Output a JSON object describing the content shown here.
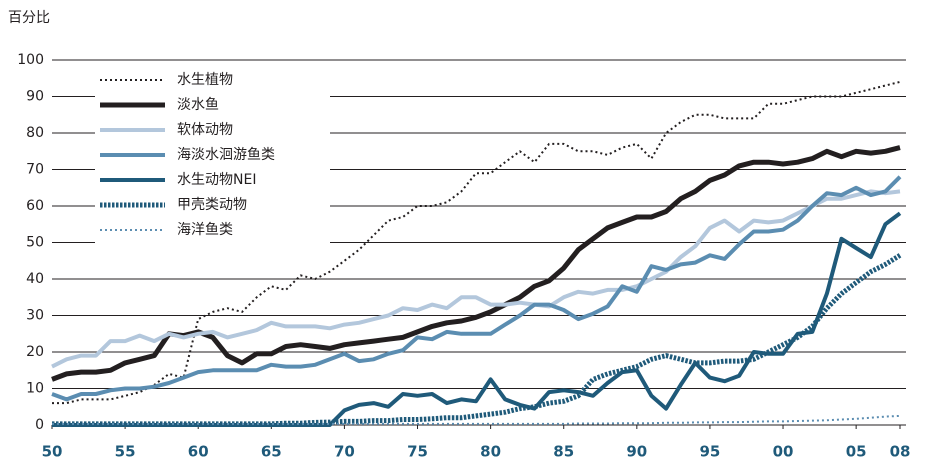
{
  "chart_data": {
    "type": "line",
    "ylabel": "百分比",
    "x": [
      1950,
      1951,
      1952,
      1953,
      1954,
      1955,
      1956,
      1957,
      1958,
      1959,
      1960,
      1961,
      1962,
      1963,
      1964,
      1965,
      1966,
      1967,
      1968,
      1969,
      1970,
      1971,
      1972,
      1973,
      1974,
      1975,
      1976,
      1977,
      1978,
      1979,
      1980,
      1981,
      1982,
      1983,
      1984,
      1985,
      1986,
      1987,
      1988,
      1989,
      1990,
      1991,
      1992,
      1993,
      1994,
      1995,
      1996,
      1997,
      1998,
      1999,
      2000,
      2001,
      2002,
      2003,
      2004,
      2005,
      2006,
      2007,
      2008
    ],
    "xlim": [
      1950,
      2008
    ],
    "xticks": [
      {
        "value": 1950,
        "label": "50"
      },
      {
        "value": 1955,
        "label": "55"
      },
      {
        "value": 1960,
        "label": "60"
      },
      {
        "value": 1965,
        "label": "65"
      },
      {
        "value": 1970,
        "label": "70"
      },
      {
        "value": 1975,
        "label": "75"
      },
      {
        "value": 1980,
        "label": "80"
      },
      {
        "value": 1985,
        "label": "85"
      },
      {
        "value": 1990,
        "label": "90"
      },
      {
        "value": 1995,
        "label": "95"
      },
      {
        "value": 2000,
        "label": "00"
      },
      {
        "value": 2005,
        "label": "05"
      },
      {
        "value": 2008,
        "label": "08"
      }
    ],
    "ylim": [
      0,
      100
    ],
    "yticks": [
      0,
      10,
      20,
      30,
      40,
      50,
      60,
      70,
      80,
      90,
      100
    ],
    "grid": true,
    "legend": "upper left",
    "series": [
      {
        "name": "水生植物",
        "color": "#231f20",
        "dash": "dotted",
        "width": 2,
        "values": [
          6,
          6,
          7,
          7,
          7,
          8,
          9,
          11,
          14,
          13,
          29,
          31,
          32,
          31,
          35,
          38,
          37,
          41,
          40,
          42,
          45,
          48,
          52,
          56,
          57,
          60,
          60,
          61,
          64,
          69,
          69,
          72,
          75,
          72,
          77,
          77,
          75,
          75,
          74,
          76,
          77,
          73,
          80,
          83,
          85,
          85,
          84,
          84,
          84,
          88,
          88,
          89,
          90,
          90,
          90,
          91,
          92,
          93,
          94
        ]
      },
      {
        "name": "淡水鱼",
        "color": "#231f20",
        "dash": "solid",
        "width": 5,
        "values": [
          12.5,
          14,
          14.5,
          14.5,
          15,
          17,
          18,
          19,
          25,
          24.5,
          25.5,
          24,
          19,
          17,
          19.5,
          19.5,
          21.5,
          22,
          21.5,
          21,
          22,
          22.5,
          23,
          23.5,
          24,
          25.5,
          27,
          28,
          28.5,
          29.5,
          31,
          33,
          35,
          38,
          39.5,
          43,
          48,
          51,
          54,
          55.5,
          57,
          57,
          58.5,
          62,
          64,
          67,
          68.5,
          71,
          72,
          72,
          71.5,
          72,
          73,
          75,
          73.5,
          75,
          74.5,
          75,
          76
        ]
      },
      {
        "name": "软体动物",
        "color": "#b3c7dc",
        "dash": "solid",
        "width": 4,
        "values": [
          16,
          18,
          19,
          19,
          23,
          23,
          24.5,
          23,
          25,
          24,
          25,
          25.5,
          24,
          25,
          26,
          28,
          27,
          27,
          27,
          26.5,
          27.5,
          28,
          29,
          30,
          32,
          31.5,
          33,
          32,
          35,
          35,
          33,
          33,
          33.5,
          33,
          32.5,
          35,
          36.5,
          36,
          37,
          37,
          38,
          40,
          42,
          46,
          49,
          54,
          56,
          53,
          56,
          55.5,
          56,
          58,
          60,
          62,
          62,
          63,
          64,
          63.5,
          64
        ]
      },
      {
        "name": "海淡水洄游鱼类",
        "color": "#5b8db1",
        "dash": "solid",
        "width": 4,
        "values": [
          8.5,
          7,
          8.5,
          8.5,
          9.5,
          10,
          10,
          10.5,
          11.5,
          13,
          14.5,
          15,
          15,
          15,
          15,
          16.5,
          16,
          16,
          16.5,
          18,
          19.5,
          17.5,
          18,
          19.5,
          20.5,
          24,
          23.5,
          25.5,
          25,
          25,
          25,
          27.5,
          30,
          33,
          33,
          31.5,
          29,
          30.5,
          32.5,
          38,
          36.5,
          43.5,
          42.5,
          44,
          44.5,
          46.5,
          45.5,
          49.5,
          53,
          53,
          53.5,
          56,
          60,
          63.5,
          63,
          65,
          63,
          64,
          68
        ]
      },
      {
        "name": "水生动物NEI",
        "color": "#1f5a7a",
        "dash": "solid",
        "width": 4,
        "values": [
          0,
          0,
          0,
          0,
          0,
          0,
          0,
          0,
          0,
          0,
          0,
          0,
          0,
          0,
          0,
          0,
          0,
          0,
          0,
          0,
          4,
          5.5,
          6,
          5,
          8.5,
          8,
          8.5,
          6,
          7,
          6.5,
          12.5,
          7,
          5.5,
          4.5,
          9,
          9.5,
          9,
          8,
          11.5,
          14.5,
          15,
          8,
          4.5,
          11,
          17,
          13,
          12,
          13.5,
          20,
          19.5,
          19.5,
          25,
          25.5,
          36,
          51,
          48.5,
          46,
          55,
          58
        ]
      },
      {
        "name": "甲壳类动物",
        "color": "#1f5a7a",
        "dash": "dotted",
        "width": 5,
        "values": [
          0.3,
          0.3,
          0.3,
          0.3,
          0.3,
          0.3,
          0.3,
          0.3,
          0.3,
          0.3,
          0.3,
          0.3,
          0.3,
          0.3,
          0.3,
          0.3,
          0.5,
          0.5,
          0.7,
          0.8,
          1,
          1,
          1.2,
          1.2,
          1.5,
          1.5,
          1.7,
          2,
          2,
          2.5,
          3,
          3.5,
          4.5,
          5,
          6,
          6.5,
          8,
          12.5,
          14,
          15,
          16,
          18,
          19,
          18,
          17,
          17,
          17.5,
          17.5,
          18,
          20,
          22,
          24,
          27,
          32,
          36,
          39,
          42,
          44,
          46.5
        ]
      },
      {
        "name": "海洋鱼类",
        "color": "#5b8db1",
        "dash": "dotted",
        "width": 2,
        "values": [
          0.3,
          0.3,
          0.3,
          0.3,
          0.3,
          0.3,
          0.3,
          0.3,
          0.3,
          0.3,
          0.3,
          0.3,
          0.3,
          0.3,
          0.3,
          0.3,
          0.3,
          0.3,
          0.3,
          0.3,
          0.3,
          0.3,
          0.3,
          0.3,
          0.3,
          0.3,
          0.3,
          0.3,
          0.3,
          0.3,
          0.3,
          0.3,
          0.3,
          0.3,
          0.3,
          0.3,
          0.4,
          0.4,
          0.4,
          0.5,
          0.5,
          0.5,
          0.6,
          0.6,
          0.7,
          0.7,
          0.8,
          0.8,
          0.9,
          1,
          1,
          1.1,
          1.2,
          1.3,
          1.5,
          1.7,
          2,
          2.3,
          2.5
        ]
      }
    ]
  }
}
